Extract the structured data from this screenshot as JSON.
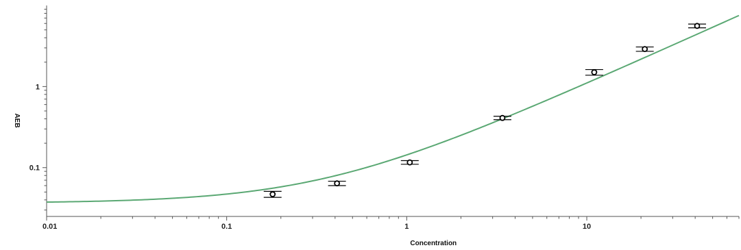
{
  "chart_data": {
    "type": "scatter",
    "xlabel": "Concentration",
    "ylabel": "AEB",
    "xscale": "log",
    "yscale": "log",
    "xlim": [
      0.01,
      70
    ],
    "ylim": [
      0.025,
      10
    ],
    "x_ticks": [
      {
        "value": 0.01,
        "label": "0.01"
      },
      {
        "value": 0.1,
        "label": "0.1"
      },
      {
        "value": 1,
        "label": "1"
      },
      {
        "value": 10,
        "label": "10"
      }
    ],
    "y_ticks": [
      {
        "value": 0.1,
        "label": "0.1"
      },
      {
        "value": 1,
        "label": "1"
      }
    ],
    "grid": false,
    "colors": {
      "curve": "#5aa873",
      "points": "#000000",
      "axis": "#555555"
    },
    "series": [
      {
        "kind": "points_with_error_bars",
        "x": [
          0.18,
          0.41,
          1.04,
          3.4,
          11.0,
          21.0,
          41.0
        ],
        "y": [
          0.047,
          0.064,
          0.116,
          0.41,
          1.5,
          2.9,
          5.6
        ],
        "error_low": [
          0.043,
          0.06,
          0.11,
          0.39,
          1.38,
          2.72,
          5.3
        ],
        "error_high": [
          0.051,
          0.068,
          0.122,
          0.43,
          1.62,
          3.08,
          5.9
        ]
      },
      {
        "kind": "fitted_curve",
        "model": {
          "baseline": 0.0365,
          "slope": 0.107,
          "exponent": 1.0
        }
      }
    ]
  }
}
